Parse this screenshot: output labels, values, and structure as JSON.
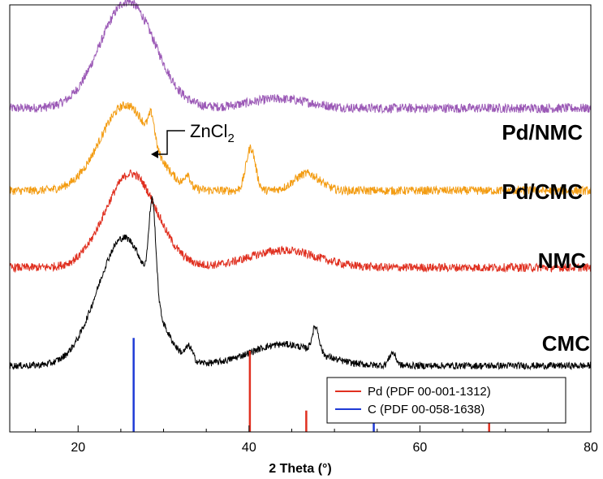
{
  "chart_data": {
    "type": "line",
    "title": "",
    "xlabel": "2 Theta (°)",
    "ylabel": "",
    "xlim": [
      12,
      80
    ],
    "ylim": [
      0,
      100
    ],
    "xticks": [
      20,
      40,
      60,
      80
    ],
    "grid": false,
    "series": [
      {
        "name": "Pd/NMC",
        "color": "#9b59b6",
        "offset": 75,
        "baseline": 0.8,
        "noise": 2.2,
        "peaks": [
          {
            "center": 25.8,
            "height": 25,
            "width": 3.2
          },
          {
            "center": 43.5,
            "height": 2.2,
            "width": 3.5
          }
        ]
      },
      {
        "name": "Pd/CMC",
        "color": "#f39c12",
        "offset": 56,
        "baseline": 0.5,
        "noise": 2.0,
        "peaks": [
          {
            "center": 25.6,
            "height": 20,
            "width": 3.0
          },
          {
            "center": 28.6,
            "height": 6,
            "width": 0.35
          },
          {
            "center": 32.8,
            "height": 3,
            "width": 0.3
          },
          {
            "center": 40.2,
            "height": 10,
            "width": 0.55
          },
          {
            "center": 46.8,
            "height": 4,
            "width": 1.5
          }
        ]
      },
      {
        "name": "NMC",
        "color": "#e03020",
        "offset": 38,
        "baseline": 0.5,
        "noise": 2.0,
        "peaks": [
          {
            "center": 26.2,
            "height": 22,
            "width": 3.0
          },
          {
            "center": 44.0,
            "height": 4,
            "width": 4.0
          }
        ]
      },
      {
        "name": "CMC",
        "color": "#000000",
        "offset": 15,
        "baseline": 0.5,
        "noise": 1.6,
        "peaks": [
          {
            "center": 25.4,
            "height": 30,
            "width": 3.1
          },
          {
            "center": 28.7,
            "height": 22,
            "width": 0.4
          },
          {
            "center": 33.0,
            "height": 3,
            "width": 0.4
          },
          {
            "center": 44.0,
            "height": 5,
            "width": 4.0
          },
          {
            "center": 47.8,
            "height": 6,
            "width": 0.4
          },
          {
            "center": 56.8,
            "height": 3,
            "width": 0.4
          }
        ]
      }
    ],
    "reference_lines": [
      {
        "name": "Pd (PDF 00-001-1312)",
        "color": "#e03020",
        "positions": [
          40.1,
          46.7,
          68.1
        ],
        "heights": [
          19,
          5,
          4
        ]
      },
      {
        "name": "C (PDF 00-058-1638)",
        "color": "#1f3bd6",
        "positions": [
          26.5,
          54.6
        ],
        "heights": [
          22,
          3
        ]
      }
    ],
    "annotations": [
      {
        "text": "ZnCl",
        "subscript": "2",
        "x": 28.7
      }
    ],
    "legend": {
      "placement": "bottom-right"
    }
  }
}
